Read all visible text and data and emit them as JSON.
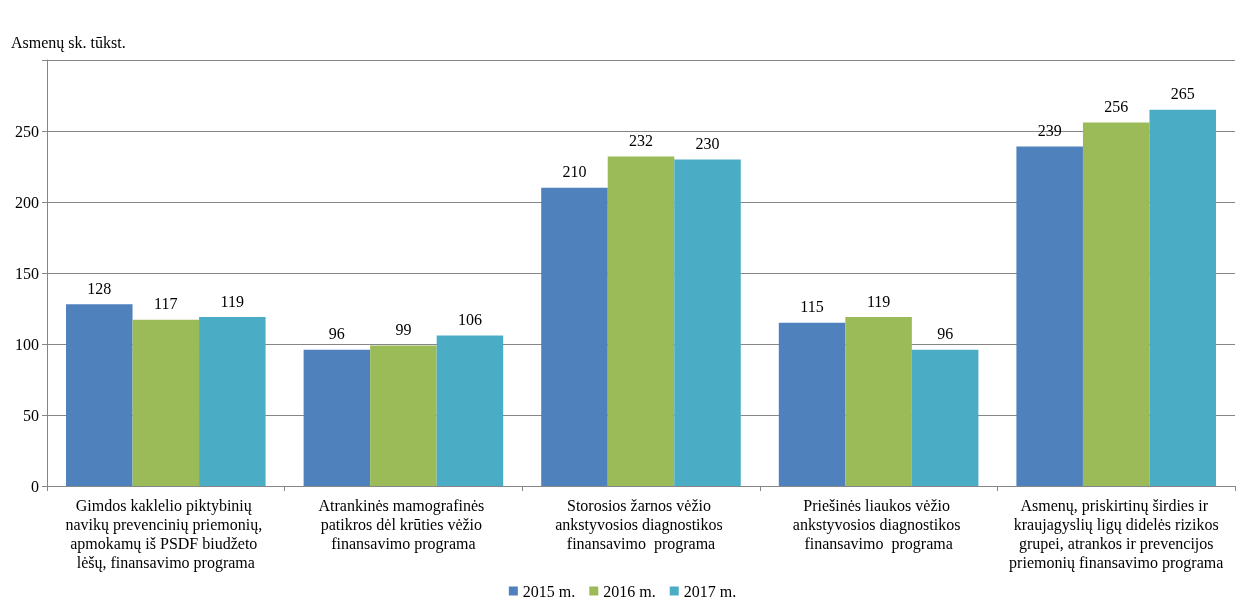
{
  "chart_data": {
    "type": "bar",
    "ylabel": "Asmenų sk. tūkst.",
    "categories": [
      "Gimdos kaklelio piktybinių navikų prevencinių priemonių, apmokamų iš PSDF biudžeto lėšų, finansavimo programa",
      "Atrankinės mamografinės patikros dėl krūties vėžio finansavimo programa",
      "Storosios žarnos vėžio ankstyvosios diagnostikos finansavimo  programa",
      "Priešinės liaukos vėžio ankstyvosios diagnostikos finansavimo  programa",
      "Asmenų, priskirtinų širdies ir kraujagyslių ligų didelės rizikos grupei, atrankos ir prevencijos priemonių finansavimo programa"
    ],
    "series": [
      {
        "name": "2015 m.",
        "color": "#4f81bd",
        "values": [
          128,
          96,
          210,
          115,
          239
        ]
      },
      {
        "name": "2016 m.",
        "color": "#9bbb59",
        "values": [
          117,
          99,
          232,
          119,
          256
        ]
      },
      {
        "name": "2017 m.",
        "color": "#4bacc6",
        "values": [
          119,
          106,
          230,
          96,
          265
        ]
      }
    ],
    "ylim": [
      0,
      300
    ],
    "yticks": [
      0,
      50,
      100,
      150,
      200,
      250,
      {
        "value": 300,
        "label": null
      }
    ],
    "grid": "y",
    "legend": "bottom",
    "data_labels": true
  }
}
